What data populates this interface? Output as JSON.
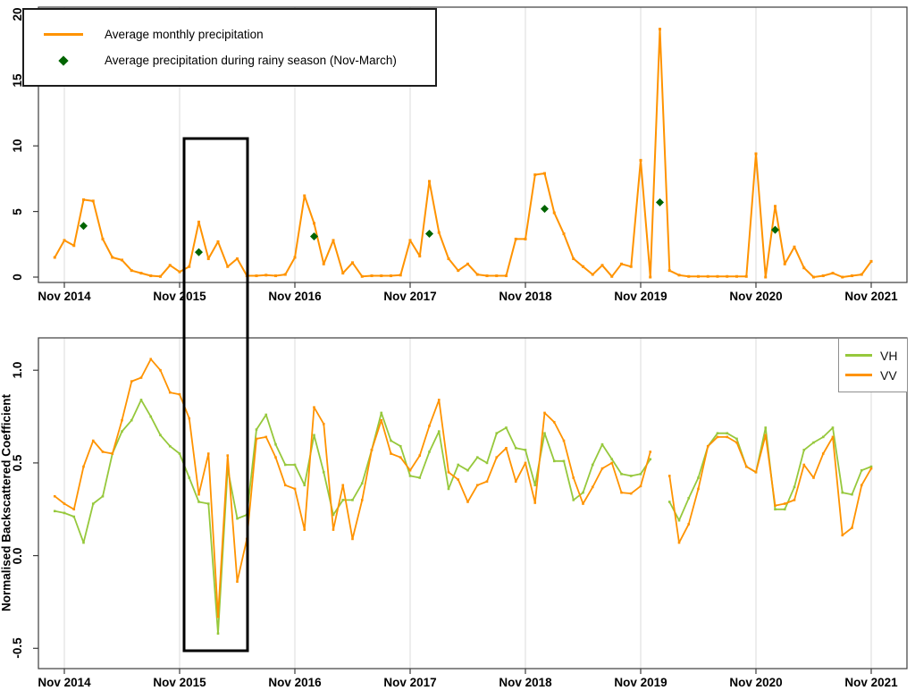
{
  "colors": {
    "precip_line": "#FF9300",
    "vh_line": "#96C83C",
    "vv_line": "#FF9300",
    "diamond": "#006400",
    "gridline": "#DBDBDB",
    "axis": "#3C3C3C",
    "highlight_box": "#000000"
  },
  "top_legend": {
    "items": [
      {
        "label": "Average monthly precipitation",
        "marker": "orange-line"
      },
      {
        "label": "Average precipitation during rainy season (Nov-March)",
        "marker": "dark-green-diamond"
      }
    ]
  },
  "bottom_legend": {
    "items": [
      {
        "label": "VH",
        "marker": "green-line",
        "color": "#96C83C"
      },
      {
        "label": "VV",
        "marker": "orange-line",
        "color": "#FF9300"
      }
    ]
  },
  "top_panel": {
    "y_ticks": [
      "0",
      "5",
      "10",
      "15",
      "20"
    ],
    "y_tick_values": [
      0,
      5,
      10,
      15,
      20
    ]
  },
  "bottom_panel": {
    "y_axis_title": "Normalised Backscattered Coefficient",
    "y_ticks": [
      "-0.5",
      "0.0",
      "0.5",
      "1.0"
    ],
    "y_tick_values": [
      -0.5,
      0.0,
      0.5,
      1.0
    ]
  },
  "x_axis": {
    "tick_labels": [
      "Nov 2014",
      "Nov 2015",
      "Nov 2016",
      "Nov 2017",
      "Nov 2018",
      "Nov 2019",
      "Nov 2020",
      "Nov 2021"
    ],
    "tick_month_indices": [
      1,
      13,
      25,
      37,
      49,
      61,
      73,
      85
    ]
  },
  "highlight_box": {
    "description": "black rectangle annotation spanning both panels",
    "from": "Dec 2015",
    "to": "Jun 2016"
  },
  "chart_data": [
    {
      "type": "line",
      "title": "",
      "xlabel": "",
      "ylabel": "",
      "ylim": [
        0,
        20.5
      ],
      "y_ticks": [
        0,
        5,
        10,
        15,
        20
      ],
      "x_tick_labels": [
        "Nov 2014",
        "Nov 2015",
        "Nov 2016",
        "Nov 2017",
        "Nov 2018",
        "Nov 2019",
        "Nov 2020",
        "Nov 2021"
      ],
      "grid": "vertical-only",
      "legend_position": "top-left",
      "months": [
        "Oct 2014",
        "Nov 2014",
        "Dec 2014",
        "Jan 2015",
        "Feb 2015",
        "Mar 2015",
        "Apr 2015",
        "May 2015",
        "Jun 2015",
        "Jul 2015",
        "Aug 2015",
        "Sep 2015",
        "Oct 2015",
        "Nov 2015",
        "Dec 2015",
        "Jan 2016",
        "Feb 2016",
        "Mar 2016",
        "Apr 2016",
        "May 2016",
        "Jun 2016",
        "Jul 2016",
        "Aug 2016",
        "Sep 2016",
        "Oct 2016",
        "Nov 2016",
        "Dec 2016",
        "Jan 2017",
        "Feb 2017",
        "Mar 2017",
        "Apr 2017",
        "May 2017",
        "Jun 2017",
        "Jul 2017",
        "Aug 2017",
        "Sep 2017",
        "Oct 2017",
        "Nov 2017",
        "Dec 2017",
        "Jan 2018",
        "Feb 2018",
        "Mar 2018",
        "Apr 2018",
        "May 2018",
        "Jun 2018",
        "Jul 2018",
        "Aug 2018",
        "Sep 2018",
        "Oct 2018",
        "Nov 2018",
        "Dec 2018",
        "Jan 2019",
        "Feb 2019",
        "Mar 2019",
        "Apr 2019",
        "May 2019",
        "Jun 2019",
        "Jul 2019",
        "Aug 2019",
        "Sep 2019",
        "Oct 2019",
        "Nov 2019",
        "Dec 2019",
        "Jan 2020",
        "Feb 2020",
        "Mar 2020",
        "Apr 2020",
        "May 2020",
        "Jun 2020",
        "Jul 2020",
        "Aug 2020",
        "Sep 2020",
        "Oct 2020",
        "Nov 2020",
        "Dec 2020",
        "Jan 2021",
        "Feb 2021",
        "Mar 2021",
        "Apr 2021",
        "May 2021",
        "Jun 2021",
        "Jul 2021",
        "Aug 2021",
        "Sep 2021",
        "Oct 2021",
        "Nov 2021"
      ],
      "series": [
        {
          "name": "Average monthly precipitation",
          "color": "#FF9300",
          "values": [
            1.5,
            2.8,
            2.4,
            5.9,
            5.8,
            2.9,
            1.5,
            1.3,
            0.5,
            0.3,
            0.1,
            0.05,
            0.9,
            0.4,
            0.8,
            4.2,
            1.4,
            2.7,
            0.8,
            1.4,
            0.1,
            0.1,
            0.15,
            0.1,
            0.2,
            1.5,
            6.2,
            4.1,
            1.0,
            2.8,
            0.3,
            1.1,
            0.05,
            0.1,
            0.1,
            0.1,
            0.15,
            2.8,
            1.6,
            7.3,
            3.4,
            1.4,
            0.5,
            1.0,
            0.2,
            0.1,
            0.1,
            0.1,
            2.9,
            2.9,
            7.8,
            7.9,
            4.9,
            3.3,
            1.4,
            0.8,
            0.2,
            0.9,
            0.05,
            1.0,
            0.8,
            8.9,
            0.0,
            18.9,
            0.5,
            0.15,
            0.05,
            0.05,
            0.05,
            0.05,
            0.05,
            0.05,
            0.05,
            9.4,
            0.0,
            5.4,
            1.0,
            2.3,
            0.7,
            0.0,
            0.1,
            0.3,
            0.0,
            0.1,
            0.2,
            1.2
          ]
        },
        {
          "name": "Average precipitation during rainy season (Nov-March)",
          "marker": "diamond",
          "color": "#006400",
          "points": [
            {
              "month": "Jan 2015",
              "month_index": 3,
              "value": 3.9
            },
            {
              "month": "Jan 2016",
              "month_index": 15,
              "value": 1.9
            },
            {
              "month": "Jan 2017",
              "month_index": 27,
              "value": 3.1
            },
            {
              "month": "Jan 2018",
              "month_index": 39,
              "value": 3.3
            },
            {
              "month": "Jan 2019",
              "month_index": 51,
              "value": 5.2
            },
            {
              "month": "Jan 2020",
              "month_index": 63,
              "value": 5.7
            },
            {
              "month": "Jan 2021",
              "month_index": 75,
              "value": 3.6
            }
          ]
        }
      ]
    },
    {
      "type": "line",
      "title": "",
      "xlabel": "",
      "ylabel": "Normalised Backscattered Coefficient",
      "ylim": [
        -0.6,
        1.15
      ],
      "y_ticks": [
        -0.5,
        0.0,
        0.5,
        1.0
      ],
      "x_tick_labels": [
        "Nov 2014",
        "Nov 2015",
        "Nov 2016",
        "Nov 2017",
        "Nov 2018",
        "Nov 2019",
        "Nov 2020",
        "Nov 2021"
      ],
      "grid": "vertical-only",
      "legend_position": "top-right",
      "data_gap": "Jan 2020",
      "months": [
        "Oct 2014",
        "Nov 2014",
        "Dec 2014",
        "Jan 2015",
        "Feb 2015",
        "Mar 2015",
        "Apr 2015",
        "May 2015",
        "Jun 2015",
        "Jul 2015",
        "Aug 2015",
        "Sep 2015",
        "Oct 2015",
        "Nov 2015",
        "Dec 2015",
        "Jan 2016",
        "Feb 2016",
        "Mar 2016",
        "Apr 2016",
        "May 2016",
        "Jun 2016",
        "Jul 2016",
        "Aug 2016",
        "Sep 2016",
        "Oct 2016",
        "Nov 2016",
        "Dec 2016",
        "Jan 2017",
        "Feb 2017",
        "Mar 2017",
        "Apr 2017",
        "May 2017",
        "Jun 2017",
        "Jul 2017",
        "Aug 2017",
        "Sep 2017",
        "Oct 2017",
        "Nov 2017",
        "Dec 2017",
        "Jan 2018",
        "Feb 2018",
        "Mar 2018",
        "Apr 2018",
        "May 2018",
        "Jun 2018",
        "Jul 2018",
        "Aug 2018",
        "Sep 2018",
        "Oct 2018",
        "Nov 2018",
        "Dec 2018",
        "Jan 2019",
        "Feb 2019",
        "Mar 2019",
        "Apr 2019",
        "May 2019",
        "Jun 2019",
        "Jul 2019",
        "Aug 2019",
        "Sep 2019",
        "Oct 2019",
        "Nov 2019",
        "Dec 2019",
        "Jan 2020",
        "Feb 2020",
        "Mar 2020",
        "Apr 2020",
        "May 2020",
        "Jun 2020",
        "Jul 2020",
        "Aug 2020",
        "Sep 2020",
        "Oct 2020",
        "Nov 2020",
        "Dec 2020",
        "Jan 2021",
        "Feb 2021",
        "Mar 2021",
        "Apr 2021",
        "May 2021",
        "Jun 2021",
        "Jul 2021",
        "Aug 2021",
        "Sep 2021",
        "Oct 2021",
        "Nov 2021"
      ],
      "series": [
        {
          "name": "VH",
          "color": "#96C83C",
          "values": [
            0.24,
            0.23,
            0.21,
            0.07,
            0.28,
            0.32,
            0.55,
            0.67,
            0.73,
            0.84,
            0.75,
            0.65,
            0.59,
            0.55,
            0.42,
            0.29,
            0.28,
            -0.42,
            0.47,
            0.2,
            0.22,
            0.68,
            0.76,
            0.6,
            0.49,
            0.49,
            0.38,
            0.65,
            0.45,
            0.22,
            0.3,
            0.3,
            0.39,
            0.57,
            0.77,
            0.62,
            0.59,
            0.43,
            0.42,
            0.56,
            0.67,
            0.36,
            0.49,
            0.46,
            0.53,
            0.5,
            0.66,
            0.69,
            0.58,
            0.57,
            0.38,
            0.66,
            0.51,
            0.51,
            0.3,
            0.34,
            0.49,
            0.6,
            0.52,
            0.44,
            0.43,
            0.44,
            0.52,
            null,
            0.29,
            0.19,
            0.31,
            0.42,
            0.59,
            0.66,
            0.66,
            0.63,
            0.48,
            0.45,
            0.69,
            0.25,
            0.25,
            0.37,
            0.57,
            0.61,
            0.64,
            0.69,
            0.34,
            0.33,
            0.46,
            0.48
          ]
        },
        {
          "name": "VV",
          "color": "#FF9300",
          "values": [
            0.32,
            0.28,
            0.25,
            0.48,
            0.62,
            0.56,
            0.55,
            0.73,
            0.94,
            0.96,
            1.06,
            1.0,
            0.88,
            0.87,
            0.74,
            0.33,
            0.55,
            -0.33,
            0.54,
            -0.14,
            0.09,
            0.63,
            0.64,
            0.53,
            0.38,
            0.36,
            0.14,
            0.8,
            0.71,
            0.14,
            0.38,
            0.09,
            0.3,
            0.57,
            0.73,
            0.55,
            0.53,
            0.46,
            0.54,
            0.7,
            0.84,
            0.45,
            0.41,
            0.29,
            0.38,
            0.4,
            0.53,
            0.58,
            0.4,
            0.5,
            0.285,
            0.77,
            0.72,
            0.62,
            0.42,
            0.28,
            0.37,
            0.47,
            0.5,
            0.34,
            0.335,
            0.375,
            0.56,
            null,
            0.43,
            0.07,
            0.17,
            0.36,
            0.59,
            0.64,
            0.64,
            0.61,
            0.48,
            0.45,
            0.65,
            0.27,
            0.28,
            0.3,
            0.49,
            0.42,
            0.55,
            0.64,
            0.11,
            0.15,
            0.38,
            0.47
          ]
        }
      ]
    }
  ]
}
